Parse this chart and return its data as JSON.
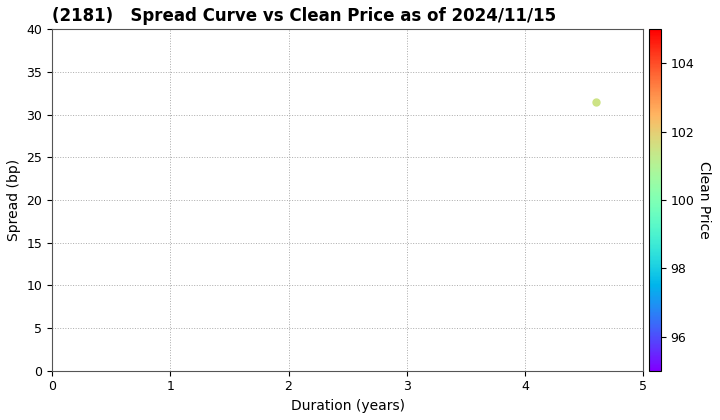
{
  "title": "(2181)   Spread Curve vs Clean Price as of 2024/11/15",
  "xlabel": "Duration (years)",
  "ylabel": "Spread (bp)",
  "colorbar_label": "Clean Price",
  "xlim": [
    0,
    5
  ],
  "ylim": [
    0,
    40
  ],
  "xticks": [
    0,
    1,
    2,
    3,
    4,
    5
  ],
  "yticks": [
    0,
    5,
    10,
    15,
    20,
    25,
    30,
    35,
    40
  ],
  "colorbar_min": 95,
  "colorbar_max": 105,
  "colorbar_ticks": [
    96,
    98,
    100,
    102,
    104
  ],
  "point_duration": 4.6,
  "point_spread": 31.5,
  "point_clean_price": 101.5,
  "point_size": 25,
  "background_color": "#ffffff",
  "grid_color": "#aaaaaa",
  "title_fontsize": 12,
  "axis_fontsize": 10,
  "tick_fontsize": 9
}
